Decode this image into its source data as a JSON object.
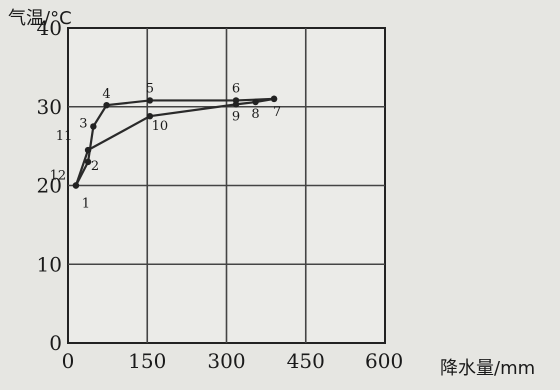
{
  "chart_data": {
    "type": "line",
    "ylabel": "气温/°C",
    "xlabel": "降水量/mm",
    "xlim": [
      0,
      600
    ],
    "ylim": [
      0,
      40
    ],
    "x_ticks": [
      "0",
      "150",
      "300",
      "450",
      "600"
    ],
    "y_ticks": [
      "0",
      "10",
      "20",
      "30",
      "40"
    ],
    "grid": true,
    "series": [
      {
        "points": [
          {
            "label": "1",
            "x": 15,
            "y": 20
          },
          {
            "label": "2",
            "x": 38,
            "y": 23
          },
          {
            "label": "3",
            "x": 48,
            "y": 27.5
          },
          {
            "label": "4",
            "x": 73,
            "y": 30.2
          },
          {
            "label": "5",
            "x": 155,
            "y": 30.8
          },
          {
            "label": "6",
            "x": 318,
            "y": 30.8
          },
          {
            "label": "7",
            "x": 390,
            "y": 31
          }
        ]
      },
      {
        "points": [
          {
            "label": "12",
            "x": 15,
            "y": 20
          },
          {
            "label": "11",
            "x": 38,
            "y": 24.5
          },
          {
            "label": "10",
            "x": 155,
            "y": 28.8
          },
          {
            "label": "9",
            "x": 318,
            "y": 30.3
          },
          {
            "label": "8",
            "x": 355,
            "y": 30.6
          },
          {
            "label": "7",
            "x": 390,
            "y": 31
          }
        ]
      }
    ]
  }
}
